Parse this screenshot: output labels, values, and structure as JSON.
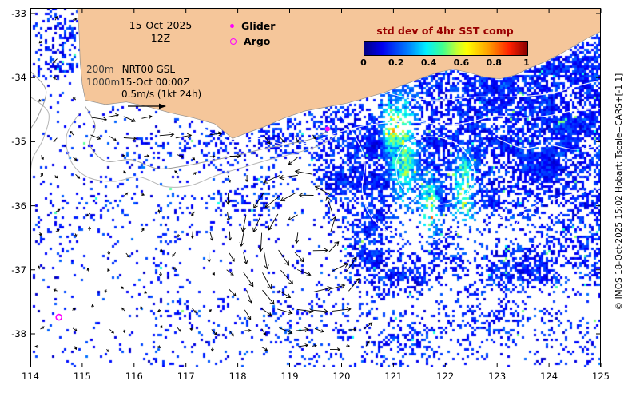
{
  "figure": {
    "type": "ocean analysis map",
    "region": "southwest Australia shelf and Southern Ocean"
  },
  "axes": {
    "x_ticks": [
      "114",
      "115",
      "116",
      "117",
      "118",
      "119",
      "120",
      "121",
      "122",
      "123",
      "124",
      "125"
    ],
    "y_ticks": [
      "-33",
      "-34",
      "-35",
      "-36",
      "-37",
      "-38"
    ],
    "x_range": [
      114,
      125
    ],
    "y_range": [
      -38.52,
      -32.91
    ]
  },
  "annotations": {
    "date": "15-Oct-2025",
    "time": "12Z",
    "contour1_label": "200m",
    "model_label": "NRT00 GSL",
    "contour2_label": "1000m",
    "valid_label": "15-Oct 00:00Z",
    "scale_label": "0.5m/s (1kt 24h)"
  },
  "legend": {
    "glider_label": "Glider",
    "argo_label": "Argo",
    "marker_color": "#ff00ff"
  },
  "colorbar": {
    "title": "std dev of 4hr SST comp",
    "title_color": "#990000",
    "tick_labels": [
      "0",
      "0.2",
      "0.4",
      "0.6",
      "0.8",
      "1"
    ],
    "min": 0,
    "max": 1
  },
  "markers": {
    "glider": {
      "lon": 119.73,
      "lat": -34.8
    },
    "argo": {
      "lon": 114.55,
      "lat": -37.74
    }
  },
  "colors": {
    "land": "#f5c69a",
    "ocean": "#ffffff",
    "shelf_contour": "#9a9a9a",
    "sst_contour": "#ffffff",
    "vectors": "#000000"
  },
  "credit": "© IMOS 18-Oct-2025 15:02 Hobart; Tscale=CARS+[-1 1]"
}
